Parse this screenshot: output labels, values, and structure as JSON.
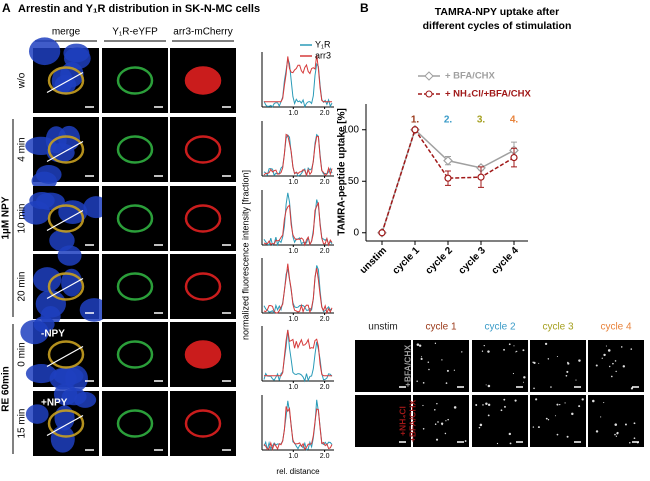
{
  "panel_a": {
    "letter": "A",
    "title": "Arrestin and Y₁R distribution in SK-N-MC cells",
    "columns": [
      "merge",
      "Y₁R-eYFP",
      "arr3-mCherry"
    ],
    "rows": [
      "w/o",
      "4 min",
      "10 min",
      "20 min",
      "0 min",
      "15 min"
    ],
    "groups": [
      "1µM NPY",
      "RE 60min"
    ],
    "insets": [
      "-NPY",
      "+NPY"
    ],
    "profile": {
      "legend": [
        {
          "name": "Y₁R",
          "color": "#2a9bb8"
        },
        {
          "name": "arr3",
          "color": "#d63a3a"
        }
      ],
      "ylabel": "normalized fluorescence intensity [fraction]",
      "xlabel": "rel. distance",
      "xticks": [
        "1.0",
        "2.0"
      ]
    }
  },
  "panel_b_letter": "B",
  "chart_data": {
    "type": "line",
    "title": [
      "TAMRA-NPY uptake after",
      "different cycles of stimulation"
    ],
    "ylabel": "TAMRA-peptide uptake [%]",
    "categories": [
      "unstim",
      "cycle 1",
      "cycle 2",
      "cycle 3",
      "cycle 4"
    ],
    "ylim": [
      -8,
      125
    ],
    "yticks": [
      0,
      50,
      100
    ],
    "cycle_labels": [
      {
        "label": "1.",
        "color": "#9b3a1a"
      },
      {
        "label": "2.",
        "color": "#3a9bc8"
      },
      {
        "label": "3.",
        "color": "#a5a020"
      },
      {
        "label": "4.",
        "color": "#e8823a"
      }
    ],
    "series": [
      {
        "name": "+ BFA/CHX",
        "color": "#a0a0a0",
        "marker": "diamond",
        "dashed": false,
        "values": [
          0,
          100,
          70,
          63,
          80
        ],
        "errors": [
          0,
          0,
          4,
          2,
          8
        ]
      },
      {
        "name": "+ NH₄Cl/+BFA/CHX",
        "color": "#a01818",
        "marker": "circle",
        "dashed": true,
        "values": [
          0,
          100,
          53,
          54,
          73
        ],
        "errors": [
          0,
          0,
          7,
          10,
          9
        ]
      }
    ]
  },
  "panel_b_images": {
    "columns": [
      {
        "label": "unstim",
        "color": "#222222"
      },
      {
        "label": "cycle 1",
        "color": "#9b3a1a"
      },
      {
        "label": "cycle 2",
        "color": "#3a9bc8"
      },
      {
        "label": "cycle 3",
        "color": "#a5a020"
      },
      {
        "label": "cycle 4",
        "color": "#e8823a"
      }
    ],
    "rows": [
      {
        "lines": [
          "+BFA/CHX"
        ],
        "color": "#a0a0a0"
      },
      {
        "lines": [
          "+NH₄Cl",
          "+BFA/CHX"
        ],
        "color": "#a01818"
      }
    ]
  }
}
